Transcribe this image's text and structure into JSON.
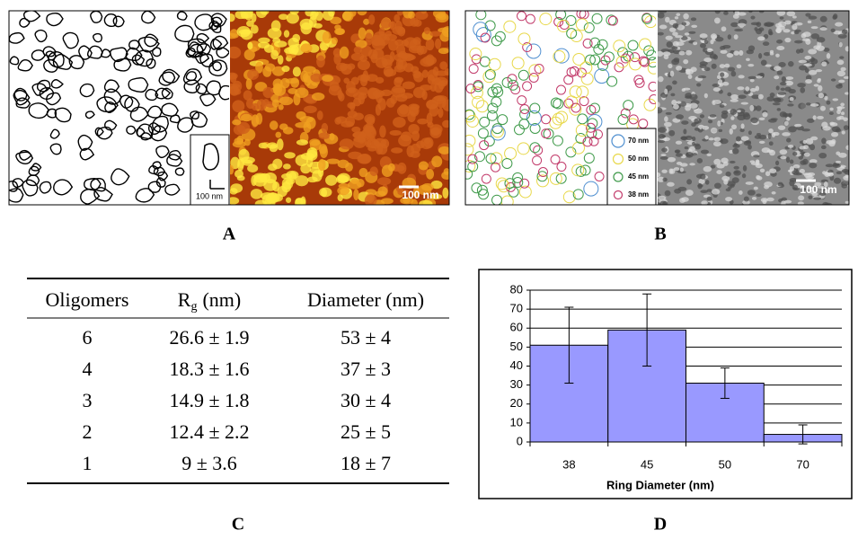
{
  "panel_a": {
    "label": "A",
    "inset_scale": "100 nm",
    "image_scale": "100 nm"
  },
  "panel_b": {
    "label": "B",
    "image_scale": "100 nm",
    "legend": [
      {
        "label": "70 nm",
        "color": "#4f8fd0"
      },
      {
        "label": "50 nm",
        "color": "#e8d84a"
      },
      {
        "label": "45 nm",
        "color": "#3f9a4a"
      },
      {
        "label": "38 nm",
        "color": "#c23a6a"
      }
    ]
  },
  "table": {
    "label": "C",
    "header": {
      "col1": "Oligomers",
      "col2": {
        "symbol": "R",
        "subscript": "g",
        "unit": "(nm)"
      },
      "col3": "Diameter (nm)"
    },
    "rows": [
      [
        "6",
        "26.6 ± 1.9",
        "53 ± 4"
      ],
      [
        "4",
        "18.3 ± 1.6",
        "37 ± 3"
      ],
      [
        "3",
        "14.9 ± 1.8",
        "30 ± 4"
      ],
      [
        "2",
        "12.4 ± 2.2",
        "25 ± 5"
      ],
      [
        "1",
        "9 ± 3.6",
        "18 ± 7"
      ]
    ]
  },
  "chart_data": {
    "type": "bar",
    "label": "D",
    "x_label": "Ring Diameter (nm)",
    "categories": [
      "38",
      "45",
      "50",
      "70"
    ],
    "values": [
      51,
      59,
      31,
      4
    ],
    "errors": [
      20,
      19,
      8,
      5
    ],
    "color": "#9999ff",
    "ylim": [
      0,
      80
    ],
    "yticks": [
      0,
      10,
      20,
      30,
      40,
      50,
      60,
      70,
      80
    ],
    "grid": true
  }
}
